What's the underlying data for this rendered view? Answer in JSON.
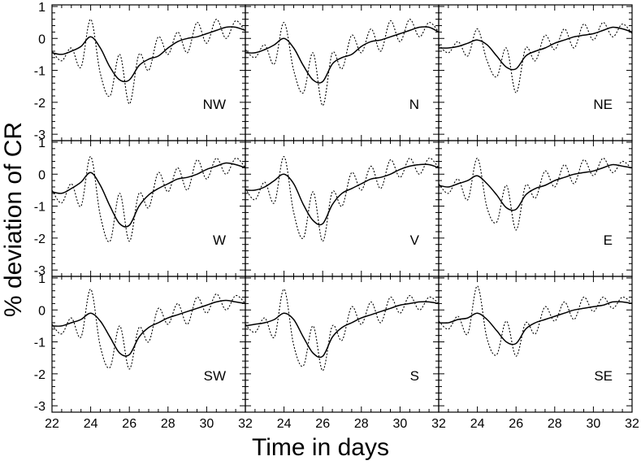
{
  "chart_data": {
    "type": "line",
    "layout": "3x3 small multiples",
    "ylabel": "% deviation of CR",
    "xlabel": "Time in days",
    "xlim": [
      22,
      32
    ],
    "ylim": [
      -3.2,
      1.05
    ],
    "xticks": [
      22,
      24,
      26,
      28,
      30,
      32
    ],
    "yticks": [
      -3,
      -2,
      -1,
      0,
      1
    ],
    "series_styles": {
      "smooth": "solid",
      "raw": "dotted"
    },
    "panels": [
      {
        "label": "NW",
        "x": [
          22,
          22.5,
          23,
          23.5,
          24,
          24.5,
          25,
          25.5,
          26,
          26.5,
          27,
          27.5,
          28,
          28.5,
          29,
          29.5,
          30,
          30.5,
          31,
          31.5,
          32
        ],
        "smooth": [
          -0.45,
          -0.5,
          -0.4,
          -0.25,
          0.05,
          -0.3,
          -0.9,
          -1.3,
          -1.3,
          -0.85,
          -0.65,
          -0.55,
          -0.3,
          -0.1,
          0.0,
          0.05,
          0.15,
          0.25,
          0.35,
          0.35,
          0.25
        ],
        "raw": [
          -0.4,
          -0.7,
          -0.3,
          -0.9,
          0.6,
          -1.1,
          -1.8,
          -0.5,
          -2.05,
          -0.5,
          -1.0,
          0.05,
          -0.5,
          0.2,
          -0.45,
          0.5,
          -0.15,
          0.6,
          0.0,
          0.55,
          0.2
        ]
      },
      {
        "label": "N",
        "x": [
          22,
          22.5,
          23,
          23.5,
          24,
          24.5,
          25,
          25.5,
          26,
          26.5,
          27,
          27.5,
          28,
          28.5,
          29,
          29.5,
          30,
          30.5,
          31,
          31.5,
          32
        ],
        "smooth": [
          -0.45,
          -0.45,
          -0.35,
          -0.2,
          0.0,
          -0.3,
          -0.85,
          -1.3,
          -1.35,
          -0.8,
          -0.6,
          -0.5,
          -0.25,
          -0.1,
          -0.05,
          0.05,
          0.15,
          0.25,
          0.35,
          0.35,
          0.2
        ],
        "raw": [
          -0.35,
          -0.6,
          -0.2,
          -0.8,
          0.5,
          -1.0,
          -1.7,
          -0.45,
          -2.1,
          -0.45,
          -0.95,
          0.1,
          -0.45,
          0.3,
          -0.4,
          0.55,
          -0.1,
          0.6,
          0.05,
          0.5,
          0.2
        ]
      },
      {
        "label": "NE",
        "x": [
          22,
          22.5,
          23,
          23.5,
          24,
          24.5,
          25,
          25.5,
          26,
          26.5,
          27,
          27.5,
          28,
          28.5,
          29,
          29.5,
          30,
          30.5,
          31,
          31.5,
          32
        ],
        "smooth": [
          -0.3,
          -0.3,
          -0.25,
          -0.15,
          -0.05,
          -0.2,
          -0.55,
          -0.9,
          -0.95,
          -0.55,
          -0.4,
          -0.3,
          -0.15,
          -0.05,
          0.05,
          0.1,
          0.15,
          0.25,
          0.35,
          0.3,
          0.2
        ],
        "raw": [
          -0.2,
          -0.45,
          -0.1,
          -0.55,
          0.3,
          -0.7,
          -1.2,
          -0.3,
          -1.7,
          -0.3,
          -0.7,
          0.1,
          -0.35,
          0.3,
          -0.3,
          0.45,
          -0.05,
          0.5,
          0.05,
          0.45,
          0.15
        ]
      },
      {
        "label": "W",
        "x": [
          22,
          22.5,
          23,
          23.5,
          24,
          24.5,
          25,
          25.5,
          26,
          26.5,
          27,
          27.5,
          28,
          28.5,
          29,
          29.5,
          30,
          30.5,
          31,
          31.5,
          32
        ],
        "smooth": [
          -0.55,
          -0.6,
          -0.45,
          -0.25,
          0.05,
          -0.35,
          -1.0,
          -1.55,
          -1.6,
          -1.0,
          -0.65,
          -0.45,
          -0.3,
          -0.15,
          -0.1,
          0.0,
          0.15,
          0.25,
          0.35,
          0.3,
          0.2
        ],
        "raw": [
          -0.5,
          -0.9,
          -0.3,
          -1.0,
          0.55,
          -1.3,
          -2.1,
          -0.6,
          -2.1,
          -0.6,
          -1.05,
          0.05,
          -0.55,
          0.2,
          -0.5,
          0.45,
          -0.15,
          0.5,
          0.0,
          0.5,
          0.2
        ]
      },
      {
        "label": "V",
        "x": [
          22,
          22.5,
          23,
          23.5,
          24,
          24.5,
          25,
          25.5,
          26,
          26.5,
          27,
          27.5,
          28,
          28.5,
          29,
          29.5,
          30,
          30.5,
          31,
          31.5,
          32
        ],
        "smooth": [
          -0.5,
          -0.5,
          -0.4,
          -0.2,
          0.0,
          -0.3,
          -0.95,
          -1.45,
          -1.55,
          -0.95,
          -0.6,
          -0.45,
          -0.3,
          -0.15,
          -0.1,
          0.0,
          0.15,
          0.25,
          0.3,
          0.3,
          0.2
        ],
        "raw": [
          -0.45,
          -0.8,
          -0.25,
          -0.9,
          0.55,
          -1.2,
          -2.0,
          -0.55,
          -2.1,
          -0.55,
          -1.0,
          0.05,
          -0.5,
          0.25,
          -0.45,
          0.45,
          -0.1,
          0.5,
          0.0,
          0.5,
          0.2
        ]
      },
      {
        "label": "E",
        "x": [
          22,
          22.5,
          23,
          23.5,
          24,
          24.5,
          25,
          25.5,
          26,
          26.5,
          27,
          27.5,
          28,
          28.5,
          29,
          29.5,
          30,
          30.5,
          31,
          31.5,
          32
        ],
        "smooth": [
          -0.35,
          -0.4,
          -0.3,
          -0.2,
          -0.05,
          -0.3,
          -0.65,
          -1.05,
          -1.1,
          -0.65,
          -0.45,
          -0.35,
          -0.2,
          -0.1,
          0.0,
          0.05,
          0.1,
          0.2,
          0.3,
          0.25,
          0.2
        ],
        "raw": [
          -0.3,
          -0.6,
          -0.15,
          -0.8,
          0.5,
          -1.05,
          -1.5,
          -0.35,
          -1.75,
          -0.35,
          -0.75,
          0.1,
          -0.4,
          0.3,
          -0.3,
          0.45,
          -0.05,
          0.5,
          0.05,
          0.4,
          0.15
        ]
      },
      {
        "label": "SW",
        "x": [
          22,
          22.5,
          23,
          23.5,
          24,
          24.5,
          25,
          25.5,
          26,
          26.5,
          27,
          27.5,
          28,
          28.5,
          29,
          29.5,
          30,
          30.5,
          31,
          31.5,
          32
        ],
        "smooth": [
          -0.5,
          -0.5,
          -0.4,
          -0.3,
          -0.1,
          -0.35,
          -0.85,
          -1.35,
          -1.4,
          -0.85,
          -0.55,
          -0.4,
          -0.25,
          -0.15,
          -0.05,
          0.05,
          0.15,
          0.25,
          0.3,
          0.25,
          0.2
        ],
        "raw": [
          -0.45,
          -0.75,
          -0.25,
          -0.85,
          0.65,
          -1.15,
          -1.8,
          -0.5,
          -1.85,
          -0.55,
          -1.0,
          0.05,
          -0.45,
          0.2,
          -0.45,
          0.4,
          -0.1,
          0.5,
          0.0,
          0.45,
          0.2
        ]
      },
      {
        "label": "S",
        "x": [
          22,
          22.5,
          23,
          23.5,
          24,
          24.5,
          25,
          25.5,
          26,
          26.5,
          27,
          27.5,
          28,
          28.5,
          29,
          29.5,
          30,
          30.5,
          31,
          31.5,
          32
        ],
        "smooth": [
          -0.5,
          -0.45,
          -0.4,
          -0.3,
          -0.1,
          -0.3,
          -0.85,
          -1.35,
          -1.45,
          -0.85,
          -0.55,
          -0.4,
          -0.25,
          -0.15,
          -0.05,
          0.05,
          0.15,
          0.2,
          0.25,
          0.25,
          0.2
        ],
        "raw": [
          -0.45,
          -0.7,
          -0.25,
          -0.85,
          0.65,
          -1.1,
          -1.75,
          -0.5,
          -1.9,
          -0.5,
          -0.95,
          0.1,
          -0.45,
          0.25,
          -0.4,
          0.4,
          -0.1,
          0.45,
          0.0,
          0.4,
          0.2
        ]
      },
      {
        "label": "SE",
        "x": [
          22,
          22.5,
          23,
          23.5,
          24,
          24.5,
          25,
          25.5,
          26,
          26.5,
          27,
          27.5,
          28,
          28.5,
          29,
          29.5,
          30,
          30.5,
          31,
          31.5,
          32
        ],
        "smooth": [
          -0.4,
          -0.4,
          -0.3,
          -0.25,
          -0.1,
          -0.3,
          -0.65,
          -1.0,
          -1.05,
          -0.6,
          -0.4,
          -0.3,
          -0.2,
          -0.1,
          0.0,
          0.05,
          0.1,
          0.15,
          0.25,
          0.25,
          0.2
        ],
        "raw": [
          -0.35,
          -0.6,
          -0.2,
          -0.75,
          0.75,
          -0.9,
          -1.4,
          -0.35,
          -1.45,
          -0.4,
          -0.75,
          0.1,
          -0.35,
          0.25,
          -0.3,
          0.4,
          -0.05,
          0.4,
          0.05,
          0.4,
          0.2
        ]
      }
    ]
  }
}
